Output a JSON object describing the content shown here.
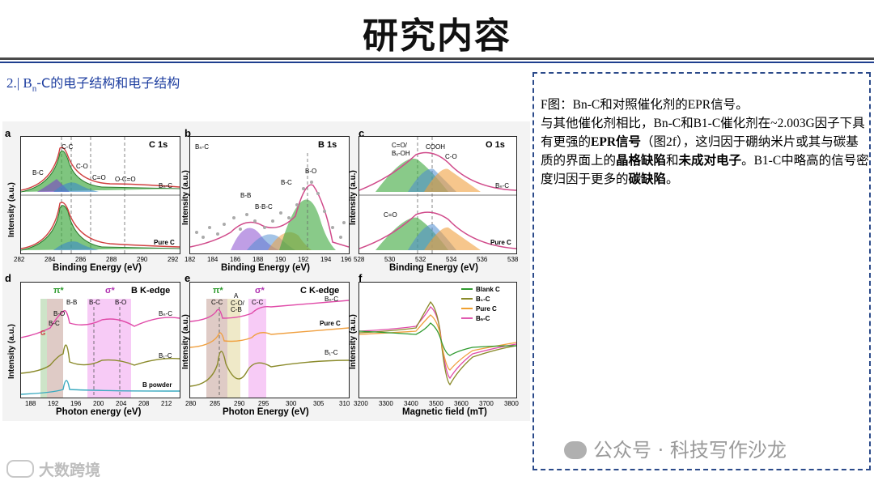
{
  "slide": {
    "title": "研究内容",
    "subtitle_prefix": "2.| B",
    "subtitle_sub": "n",
    "subtitle_suffix": "-C的电子结构和电子结构"
  },
  "panels": {
    "a": {
      "letter": "a",
      "title": "C 1s",
      "top_label": "Bₙ-C",
      "bottom_label": "Pure C",
      "peaks": [
        "B-C",
        "C-C",
        "C-O",
        "C=O",
        "O-C=O"
      ],
      "ylabel": "Intensity (a.u.)",
      "xlabel": "Binding Energy (eV)",
      "ticks": [
        "282",
        "284",
        "286",
        "288",
        "290",
        "292"
      ]
    },
    "b": {
      "letter": "b",
      "title": "B 1s",
      "corner_label": "Bₙ-C",
      "peaks": [
        "B-B",
        "B-B-C",
        "B-C",
        "B-O"
      ],
      "ylabel": "Intensity (a.u.)",
      "xlabel": "Binding Energy (eV)",
      "ticks": [
        "182",
        "184",
        "186",
        "188",
        "190",
        "192",
        "194",
        "196"
      ]
    },
    "c": {
      "letter": "c",
      "title": "O 1s",
      "top_label": "Bₙ-C",
      "bottom_label": "Pure C",
      "peaks": [
        "C=O/",
        "Bₓ-OH",
        "COOH",
        "C-O",
        "C=O"
      ],
      "ylabel": "Intensity (a.u.)",
      "xlabel": "Binding Energy (eV)",
      "ticks": [
        "528",
        "530",
        "532",
        "534",
        "536",
        "538"
      ]
    },
    "d": {
      "letter": "d",
      "title": "B K-edge",
      "bands": [
        "π*",
        "σ*"
      ],
      "peaks": [
        "G",
        "B-C",
        "B-O",
        "B-B",
        "B-C",
        "B-O"
      ],
      "curves": [
        "Bₙ-C",
        "B₁-C",
        "B powder"
      ],
      "ylabel": "Intensity (a.u.)",
      "xlabel": "Photon energy (eV)",
      "ticks": [
        "188",
        "192",
        "196",
        "200",
        "204",
        "208",
        "212"
      ]
    },
    "e": {
      "letter": "e",
      "title": "C K-edge",
      "bands": [
        "π*",
        "σ*"
      ],
      "peaks": [
        "C-C",
        "A",
        "C-O/",
        "C-B",
        "C-C"
      ],
      "curves": [
        "Bₙ-C",
        "Pure C",
        "B₁-C"
      ],
      "ylabel": "Intensity (a.u.)",
      "xlabel": "Photon Energy (eV)",
      "ticks": [
        "280",
        "285",
        "290",
        "295",
        "300",
        "305",
        "310"
      ]
    },
    "f": {
      "letter": "f",
      "legend": [
        {
          "name": "Blank C",
          "color": "#2e9a2e"
        },
        {
          "name": "B₁-C",
          "color": "#8a8a2a"
        },
        {
          "name": "Pure C",
          "color": "#f0a030"
        },
        {
          "name": "Bₙ-C",
          "color": "#e05ab0"
        }
      ],
      "ylabel": "Intensity (a.u.)",
      "xlabel": "Magnetic field (mT)",
      "ticks": [
        "3200",
        "3300",
        "3400",
        "3500",
        "3600",
        "3700",
        "3800"
      ]
    }
  },
  "textbox": {
    "t1": "F图：Bn-C和对照催化剂的EPR信号。",
    "t2": "与其他催化剂相比，Bn-C和B1-C催化剂在~2.003G因子下具有更强的",
    "b1": "EPR信号",
    "t3": "（图2f），这归因于硼纳米片或其与碳基质的界面上的",
    "b2": "晶格缺陷",
    "t4": "和",
    "b3": "未成对电子",
    "t5": "。B1-C中略高的信号密度归因于更多的",
    "b4": "碳缺陷",
    "t6": "。"
  },
  "watermark": "公众号 · 科技写作沙龙",
  "watermark2": "大数跨境",
  "colors": {
    "title_rule": "#4a4a4a",
    "blue_rule": "#1f3f8f",
    "subtitle": "#1f3fa0",
    "dash_border": "#2b4a8a"
  }
}
